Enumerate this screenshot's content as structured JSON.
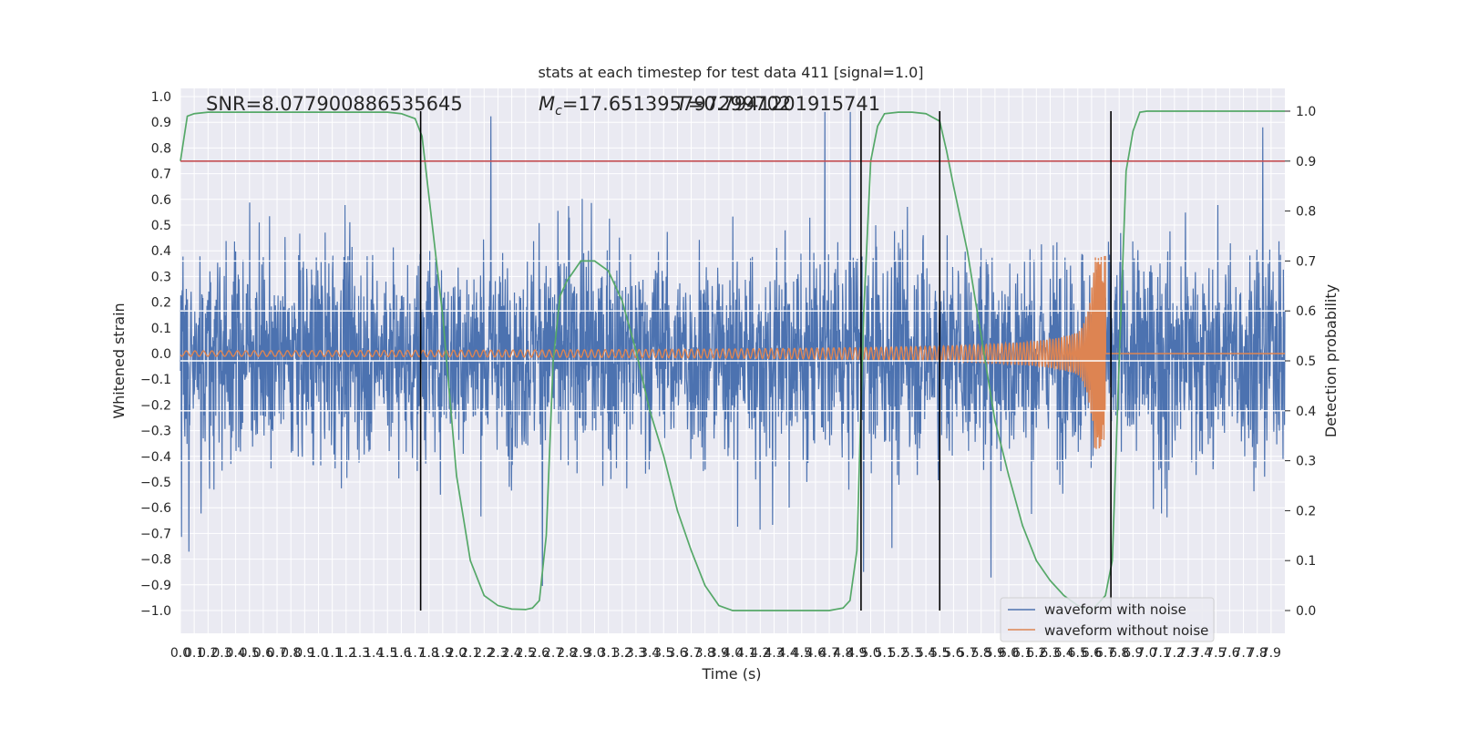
{
  "chart_data": {
    "type": "line",
    "title": "stats at each timestep for test data 411 [signal=1.0]",
    "xlabel": "Time (s)",
    "ylabel": "Whitened strain",
    "y2label": "Detection probability",
    "xlim": [
      0.0,
      8.0
    ],
    "ylim": [
      -1.1,
      1.05
    ],
    "y2lim": [
      -0.05,
      1.03
    ],
    "x_ticks": [
      "0.0",
      "0.1",
      "0.2",
      "0.3",
      "0.4",
      "0.5",
      "0.6",
      "0.7",
      "0.8",
      "0.9",
      "1.0",
      "1.1",
      "1.2",
      "1.3",
      "1.4",
      "1.5",
      "1.6",
      "1.7",
      "1.8",
      "1.9",
      "2.0",
      "2.1",
      "2.2",
      "2.3",
      "2.4",
      "2.5",
      "2.6",
      "2.7",
      "2.8",
      "2.9",
      "3.0",
      "3.1",
      "3.2",
      "3.3",
      "3.4",
      "3.5",
      "3.6",
      "3.7",
      "3.8",
      "3.9",
      "4.0",
      "4.1",
      "4.2",
      "4.3",
      "4.4",
      "4.5",
      "4.6",
      "4.7",
      "4.8",
      "4.9",
      "5.0",
      "5.1",
      "5.2",
      "5.3",
      "5.4",
      "5.5",
      "5.6",
      "5.7",
      "5.8",
      "5.9",
      "6.0",
      "6.1",
      "6.2",
      "6.3",
      "6.4",
      "6.5",
      "6.6",
      "6.7",
      "6.8",
      "6.9",
      "7.0",
      "7.1",
      "7.2",
      "7.3",
      "7.4",
      "7.5",
      "7.6",
      "7.7",
      "7.8",
      "7.9"
    ],
    "y_ticks": [
      "1.0",
      "0.9",
      "0.8",
      "0.7",
      "0.6",
      "0.5",
      "0.4",
      "0.3",
      "0.2",
      "0.1",
      "0.0",
      "−0.1",
      "−0.2",
      "−0.3",
      "−0.4",
      "−0.5",
      "−0.6",
      "−0.7",
      "−0.8",
      "−0.9",
      "−1.0"
    ],
    "y2_ticks": [
      "1.0",
      "0.9",
      "0.8",
      "0.7",
      "0.6",
      "0.5",
      "0.4",
      "0.3",
      "0.2",
      "0.1",
      "0.0"
    ],
    "grid": true,
    "legend_position": "bottom-right",
    "series": [
      {
        "name": "waveform with noise",
        "color": "#4c72b0",
        "description_values": {
          "y_peak_max": 0.94,
          "y_peak_min": -0.95,
          "typical_band": [
            -0.45,
            0.45
          ]
        }
      },
      {
        "name": "waveform without noise",
        "color": "#dd8452",
        "description_values": {
          "merger_time": 6.7,
          "max_amplitude": 0.38,
          "min_amplitude": -0.36,
          "early_amplitude": 0.012
        }
      },
      {
        "name": "",
        "color": "#55a868",
        "axis": "right",
        "x": [
          0.0,
          0.05,
          0.1,
          0.2,
          0.5,
          1.0,
          1.5,
          1.6,
          1.7,
          1.75,
          1.8,
          1.9,
          2.0,
          2.1,
          2.2,
          2.3,
          2.4,
          2.5,
          2.55,
          2.6,
          2.65,
          2.7,
          2.75,
          2.8,
          2.85,
          2.9,
          3.0,
          3.1,
          3.2,
          3.3,
          3.4,
          3.5,
          3.6,
          3.7,
          3.8,
          3.9,
          4.0,
          4.2,
          4.4,
          4.6,
          4.7,
          4.8,
          4.85,
          4.9,
          4.95,
          5.0,
          5.05,
          5.1,
          5.2,
          5.3,
          5.4,
          5.5,
          5.55,
          5.6,
          5.7,
          5.8,
          5.9,
          6.0,
          6.1,
          6.2,
          6.3,
          6.4,
          6.5,
          6.6,
          6.7,
          6.75,
          6.8,
          6.85,
          6.9,
          6.95,
          7.0,
          7.5,
          8.0
        ],
        "y": [
          0.9,
          0.99,
          0.995,
          0.998,
          0.998,
          0.998,
          0.998,
          0.995,
          0.985,
          0.95,
          0.83,
          0.59,
          0.27,
          0.1,
          0.03,
          0.01,
          0.003,
          0.002,
          0.005,
          0.02,
          0.15,
          0.5,
          0.63,
          0.66,
          0.68,
          0.7,
          0.7,
          0.68,
          0.62,
          0.52,
          0.4,
          0.31,
          0.2,
          0.12,
          0.05,
          0.01,
          0.0,
          0.0,
          0.0,
          0.0,
          0.0,
          0.005,
          0.02,
          0.12,
          0.6,
          0.9,
          0.97,
          0.995,
          0.998,
          0.998,
          0.995,
          0.98,
          0.92,
          0.85,
          0.72,
          0.55,
          0.38,
          0.27,
          0.17,
          0.1,
          0.06,
          0.03,
          0.01,
          0.0,
          0.03,
          0.1,
          0.5,
          0.88,
          0.96,
          0.998,
          1.0,
          1.0,
          1.0
        ]
      },
      {
        "name": "",
        "color": "#c44e52",
        "axis": "right",
        "x": [
          0.0,
          8.0
        ],
        "y": [
          0.9,
          0.9
        ]
      }
    ],
    "vlines": [
      1.74,
      4.93,
      5.5,
      6.74
    ],
    "hlines_right": [
      0.3,
      0.4,
      0.5,
      0.6,
      0.7
    ],
    "annotations": {
      "snr": "SNR=8.077900886535645",
      "mc": "M_c=17.651395797299702",
      "mc_prefix": "M",
      "mc_sub": "c",
      "mc_rest": "=17.651395797299702",
      "overlap": "≈0.7941201915741",
      "overlap_prefix": "T",
      "overlap_rest": "=0.7941201915741"
    }
  }
}
